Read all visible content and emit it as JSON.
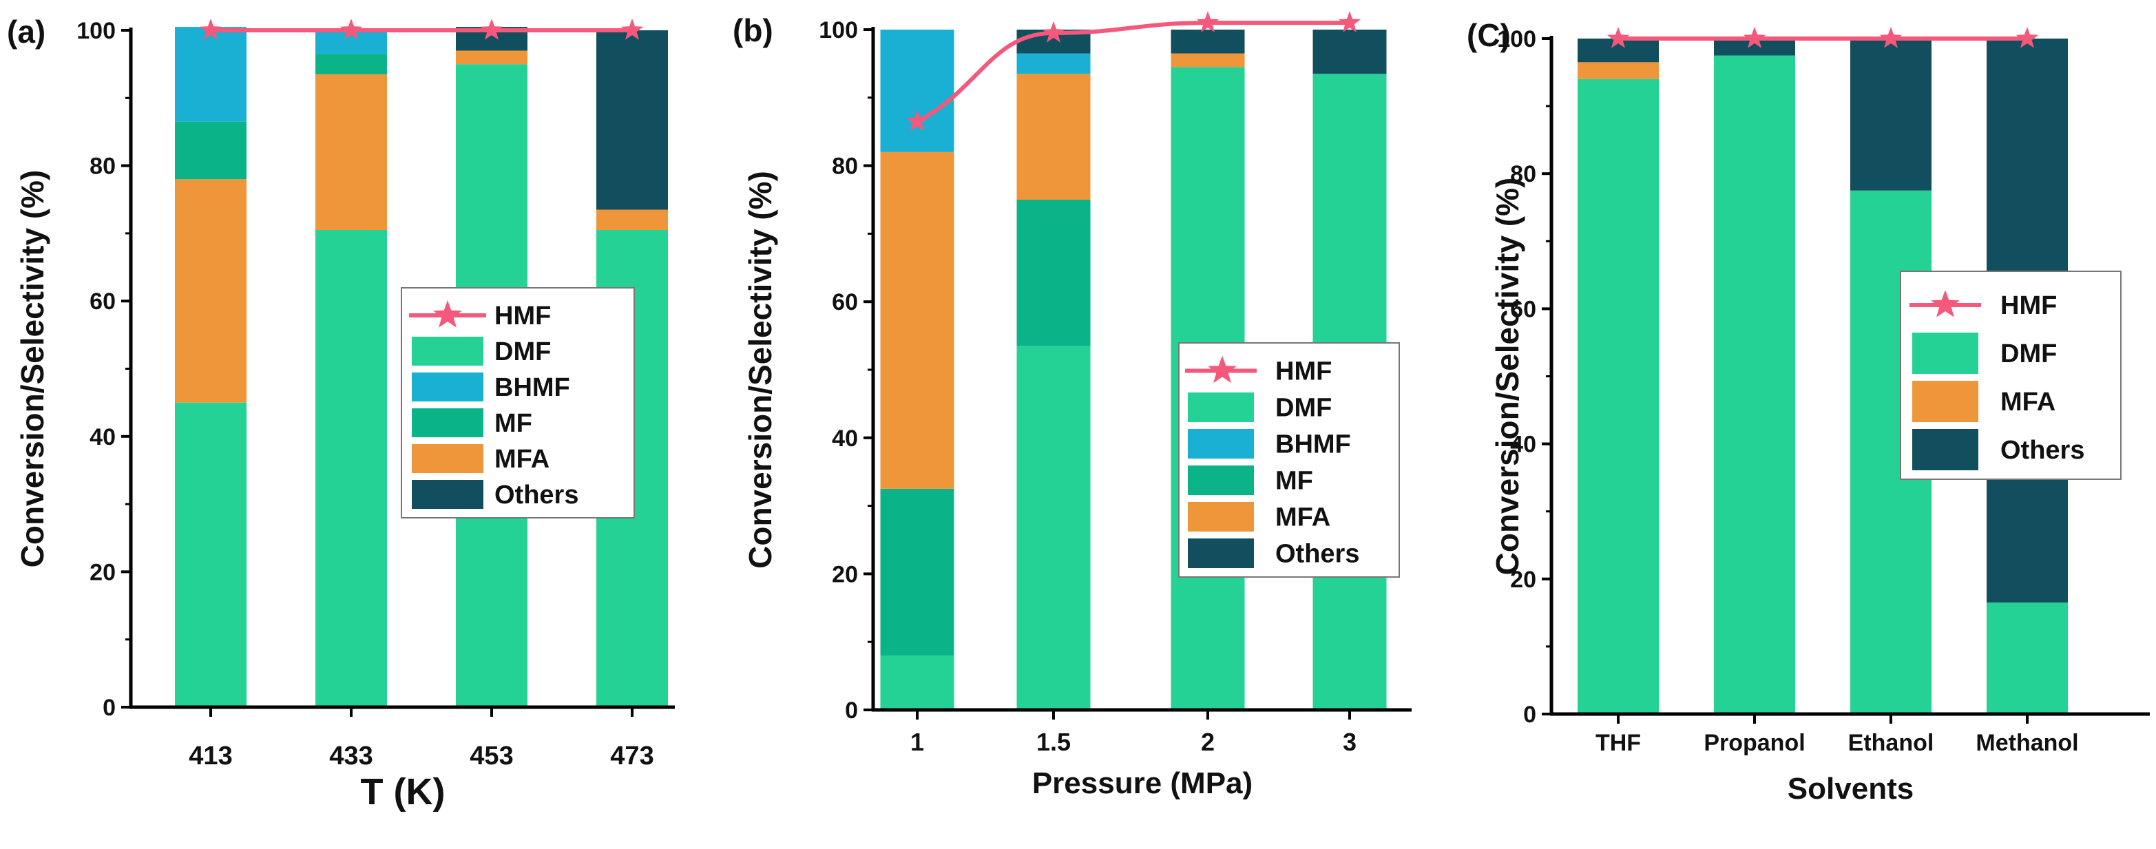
{
  "colors": {
    "DMF": "#25d296",
    "BHMF": "#1ab0d3",
    "MF": "#0bb488",
    "MFA": "#f0963a",
    "Others": "#124f5e",
    "HMF": "#f4587b",
    "axis": "#000000"
  },
  "chart_data": [
    {
      "type": "bar",
      "stacked": true,
      "panel_label": "(a)",
      "title": "",
      "xlabel": "T (K)",
      "ylabel": "Conversion/Selectivity (%)",
      "ylim": [
        0,
        100
      ],
      "yticks": [
        0,
        20,
        40,
        60,
        80,
        100
      ],
      "categories": [
        "413",
        "433",
        "453",
        "473"
      ],
      "series": [
        {
          "name": "DMF",
          "values": [
            45,
            70.5,
            95,
            70.5
          ]
        },
        {
          "name": "MFA",
          "values": [
            33,
            23,
            2,
            3
          ]
        },
        {
          "name": "MF",
          "values": [
            8.5,
            3,
            0,
            0
          ]
        },
        {
          "name": "BHMF",
          "values": [
            14,
            3.5,
            0,
            0
          ]
        },
        {
          "name": "Others",
          "values": [
            0,
            0,
            3.5,
            26.5
          ]
        }
      ],
      "line": {
        "name": "HMF",
        "values": [
          100,
          100,
          100,
          100
        ]
      },
      "legend": [
        "HMF",
        "DMF",
        "BHMF",
        "MF",
        "MFA",
        "Others"
      ],
      "legend_position": "center-right"
    },
    {
      "type": "bar",
      "stacked": true,
      "panel_label": "(b)",
      "title": "",
      "xlabel": "Pressure (MPa)",
      "ylabel": "Conversion/Selectivity (%)",
      "ylim": [
        0,
        100
      ],
      "yticks": [
        0,
        20,
        40,
        60,
        80,
        100
      ],
      "categories": [
        "1",
        "1.5",
        "2",
        "3"
      ],
      "series": [
        {
          "name": "DMF",
          "values": [
            8,
            53.5,
            94.5,
            93.5
          ]
        },
        {
          "name": "MF",
          "values": [
            24.5,
            21.5,
            0,
            0
          ]
        },
        {
          "name": "MFA",
          "values": [
            49.5,
            18.5,
            2,
            0
          ]
        },
        {
          "name": "BHMF",
          "values": [
            18,
            3,
            0,
            0
          ]
        },
        {
          "name": "Others",
          "values": [
            0,
            3.5,
            3.5,
            6.5
          ]
        }
      ],
      "line": {
        "name": "HMF",
        "values": [
          86.5,
          99.5,
          101,
          101
        ]
      },
      "legend": [
        "HMF",
        "DMF",
        "BHMF",
        "MF",
        "MFA",
        "Others"
      ],
      "legend_position": "lower-right"
    },
    {
      "type": "bar",
      "stacked": true,
      "panel_label": "(C)",
      "title": "",
      "xlabel": "Solvents",
      "ylabel": "Conversion/Selectivity (%)",
      "ylim": [
        0,
        100
      ],
      "yticks": [
        0,
        20,
        40,
        60,
        80,
        100
      ],
      "categories": [
        "THF",
        "Propanol",
        "Ethanol",
        "Methanol"
      ],
      "series": [
        {
          "name": "DMF",
          "values": [
            94,
            97.5,
            77.5,
            16.5
          ]
        },
        {
          "name": "MFA",
          "values": [
            2.5,
            0,
            0,
            0
          ]
        },
        {
          "name": "Others",
          "values": [
            3.5,
            2.5,
            22.5,
            83.5
          ]
        }
      ],
      "line": {
        "name": "HMF",
        "values": [
          100,
          100,
          100,
          100
        ]
      },
      "legend": [
        "HMF",
        "DMF",
        "MFA",
        "Others"
      ],
      "legend_position": "center-right"
    }
  ]
}
